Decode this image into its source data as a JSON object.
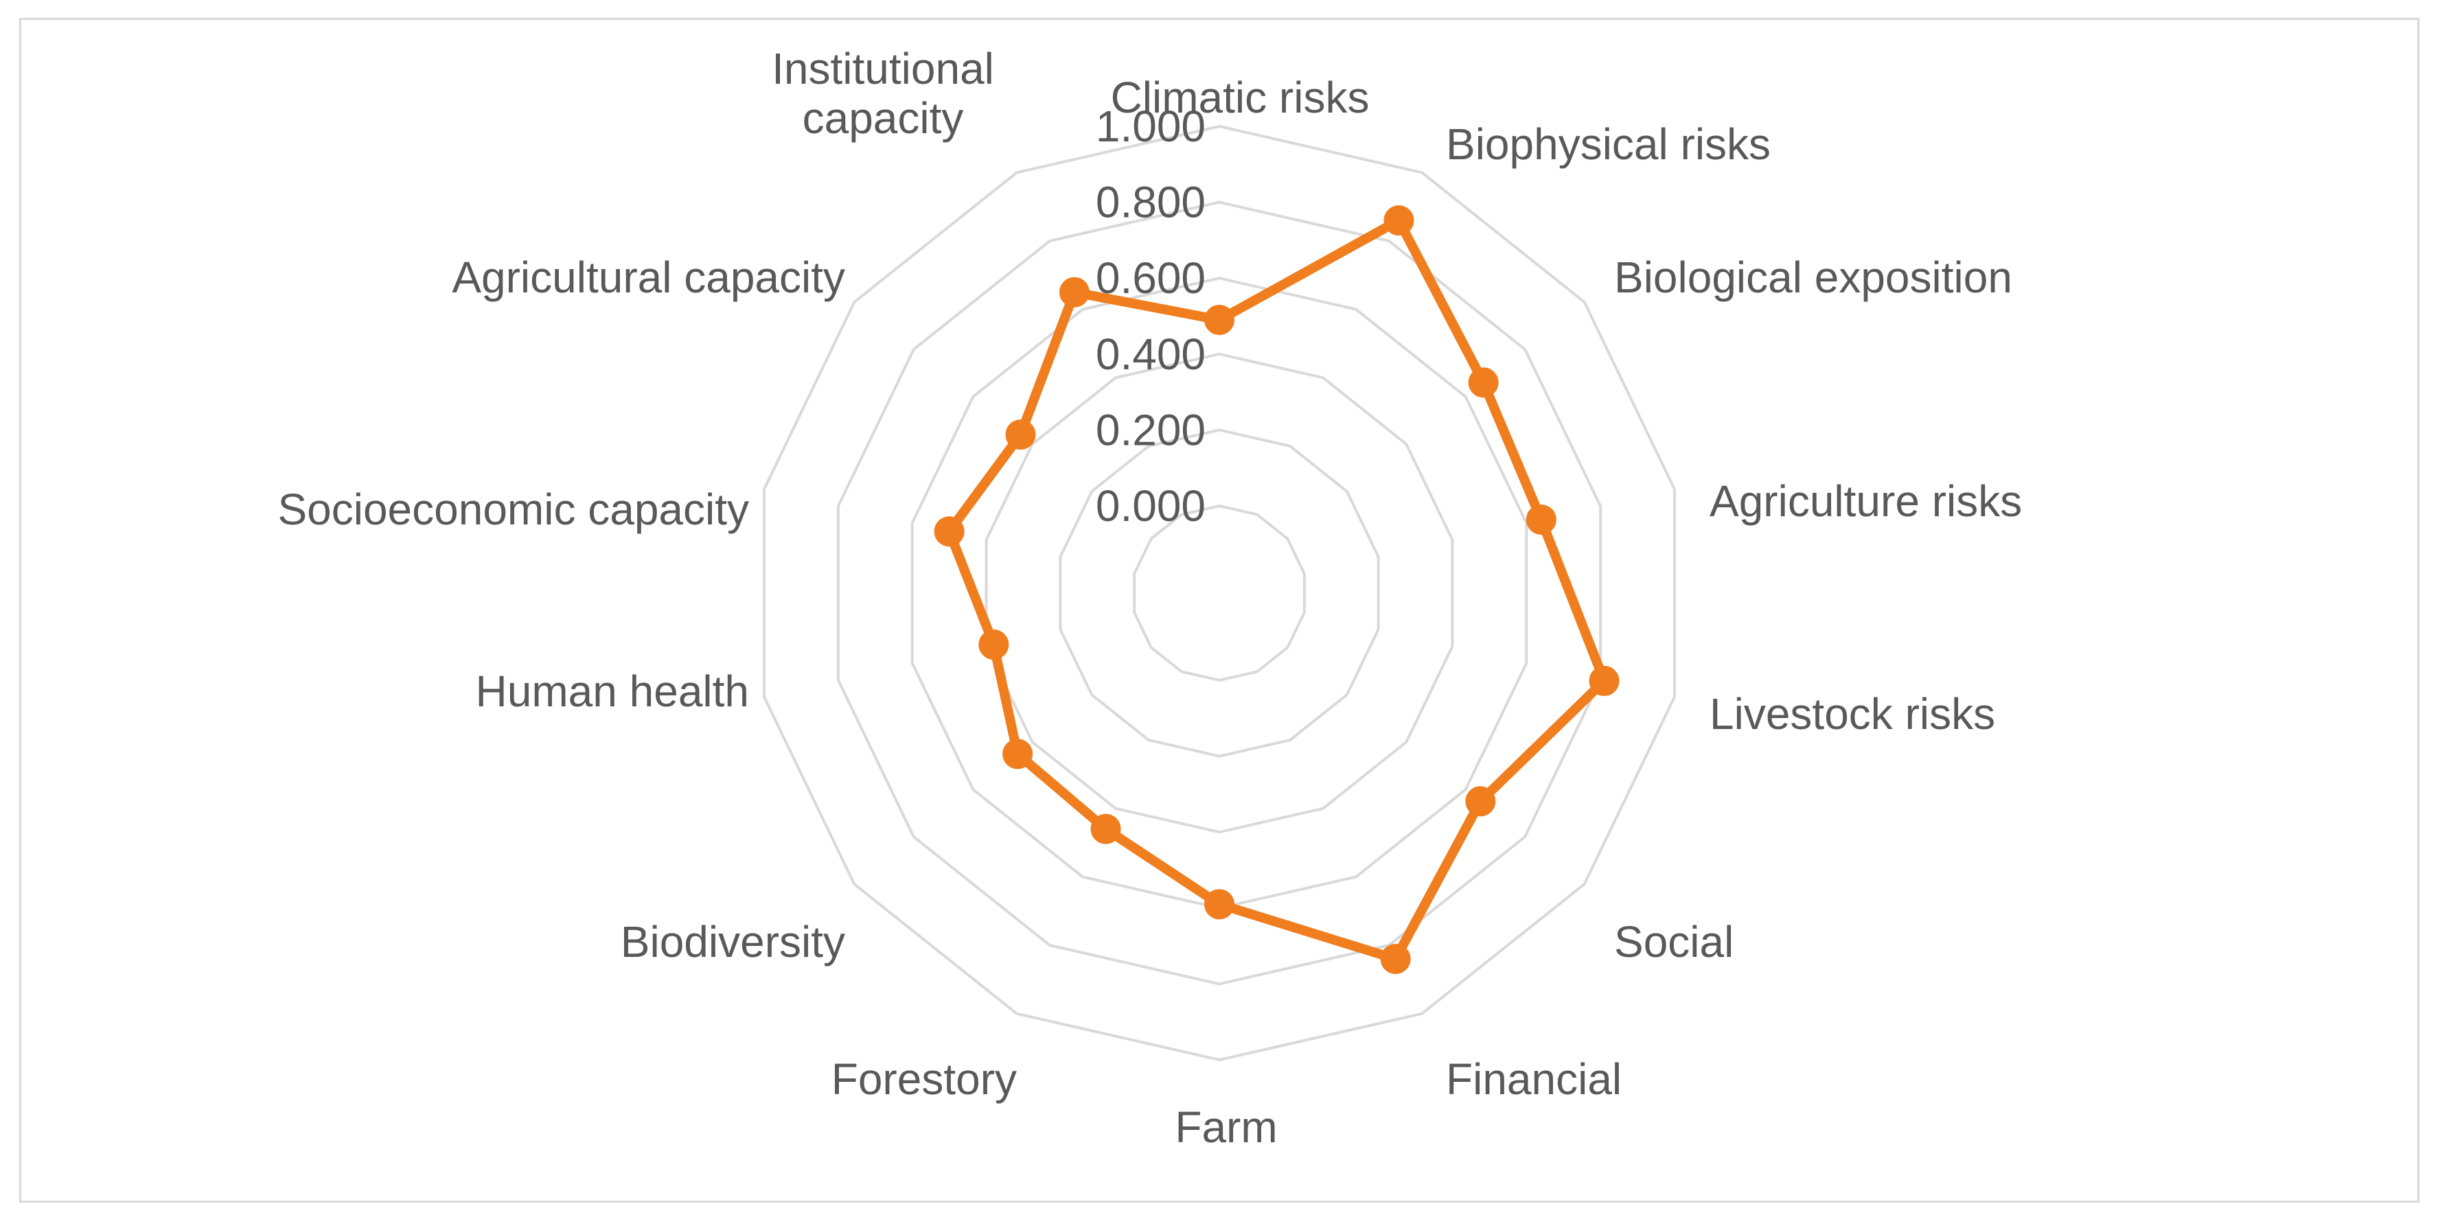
{
  "chart_data": {
    "type": "radar",
    "title": "",
    "categories": [
      "Climatic risks",
      "Biophysical risks",
      "Biological exposition",
      "Agriculture risks",
      "Livestock risks",
      "Social",
      "Financial",
      "Farm",
      "Forestory",
      "Biodiversity",
      "Human health",
      "Socioeconomic capacity",
      "Agricultural capacity",
      "Institutional capacity"
    ],
    "series": [
      {
        "values": [
          0.49,
          0.86,
          0.66,
          0.64,
          0.81,
          0.65,
          0.84,
          0.59,
          0.46,
          0.45,
          0.38,
          0.5,
          0.44,
          0.65
        ]
      }
    ],
    "rlim": [
      0,
      1
    ],
    "tick_values": [
      0,
      0.2,
      0.4,
      0.6,
      0.8,
      1.0
    ],
    "tick_labels": [
      "0.000",
      "0.200",
      "0.400",
      "0.600",
      "0.800",
      "1.000"
    ],
    "grid": true,
    "legend": "none",
    "colors": {
      "series": "#F07D1E",
      "grid": "#D9D9D9",
      "text": "#595959",
      "border": "#D9D9D9"
    }
  }
}
